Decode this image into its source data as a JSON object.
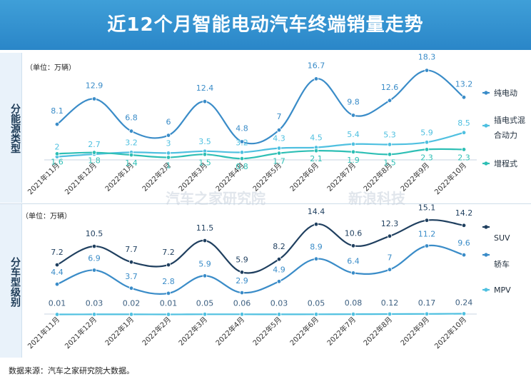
{
  "title": "近12个月智能电动汽车终端销量走势",
  "source_note": "数据来源：汽车之家研究院大数据。",
  "watermarks": [
    "汽车之家研究院",
    "新浪科技"
  ],
  "chart_data": [
    {
      "type": "line",
      "section_label": "分能源类型",
      "unit_label": "（单位：万辆）",
      "categories": [
        "2021年11月",
        "2021年12月",
        "2022年1月",
        "2022年2月",
        "2022年3月",
        "2022年4月",
        "2022年5月",
        "2022年6月",
        "2022年7月",
        "2022年8月",
        "2022年9月",
        "2022年10月"
      ],
      "series": [
        {
          "name": "纯电动",
          "color": "#3a8cc8",
          "values": [
            8.1,
            12.9,
            6.8,
            6.0,
            12.4,
            4.8,
            7.0,
            16.7,
            9.8,
            12.6,
            18.3,
            13.2
          ]
        },
        {
          "name": "插电式混合动力",
          "color": "#4fc0e0",
          "values": [
            2.0,
            2.7,
            3.2,
            3.0,
            3.5,
            3.2,
            4.3,
            4.5,
            5.4,
            5.3,
            5.9,
            8.5
          ]
        },
        {
          "name": "增程式",
          "color": "#2ebfb5",
          "values": [
            1.6,
            1.8,
            1.4,
            1.0,
            1.5,
            0.8,
            1.7,
            2.1,
            1.9,
            1.5,
            2.3,
            2.3
          ]
        }
      ],
      "legend_position": "right",
      "grid": false
    },
    {
      "type": "line",
      "section_label": "分车型级别",
      "unit_label": "（单位：万辆）",
      "categories": [
        "2021年11月",
        "2021年12月",
        "2022年1月",
        "2022年2月",
        "2022年3月",
        "2022年4月",
        "2022年5月",
        "2022年6月",
        "2022年7月",
        "2022年8月",
        "2022年9月",
        "2022年10月"
      ],
      "series": [
        {
          "name": "SUV",
          "color": "#1f3f5f",
          "values": [
            7.2,
            10.5,
            7.7,
            7.2,
            11.5,
            5.9,
            8.2,
            14.4,
            10.6,
            12.3,
            15.1,
            14.2
          ]
        },
        {
          "name": "轿车",
          "color": "#3a8cc8",
          "values": [
            4.4,
            6.9,
            3.7,
            2.8,
            5.9,
            2.9,
            4.9,
            8.9,
            6.4,
            7.0,
            11.2,
            9.6
          ]
        },
        {
          "name": "MPV",
          "color": "#4fc0e0",
          "values": [
            "0.01",
            "0.03",
            "0.02",
            "0.01",
            "0.05",
            "0.06",
            "0.03",
            "0.05",
            "0.08",
            "0.12",
            "0.17",
            "0.24"
          ]
        }
      ],
      "legend_position": "right",
      "grid": false
    }
  ]
}
